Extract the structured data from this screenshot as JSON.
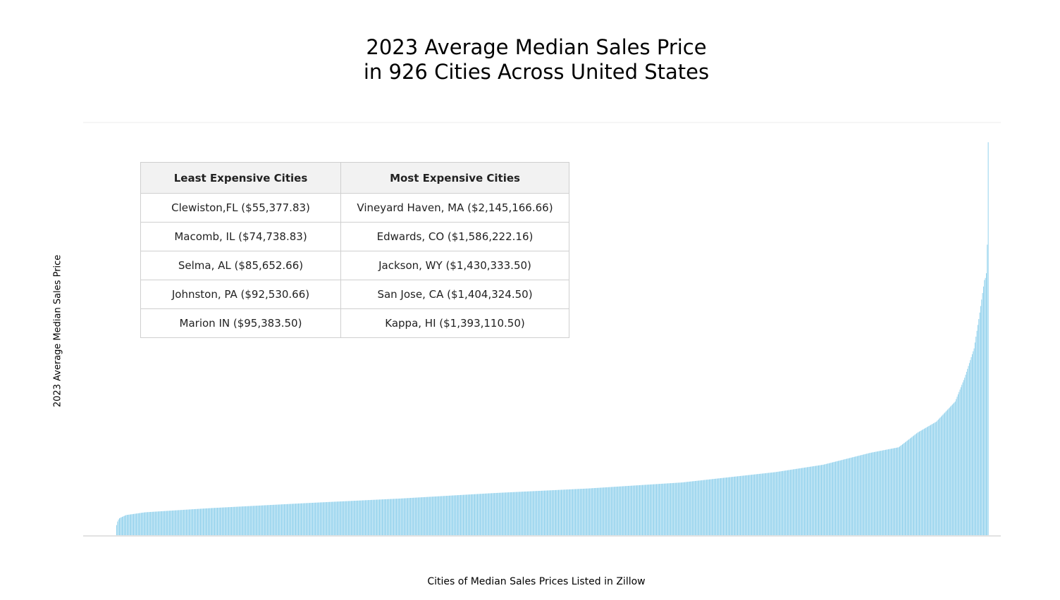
{
  "title": {
    "line1": "2023 Average Median Sales Price",
    "line2": "in 926 Cities Across United States"
  },
  "axes": {
    "ylabel": "2023 Average Median Sales Price",
    "xlabel": "Cities of Median Sales Prices Listed in Zillow"
  },
  "table": {
    "headers": [
      "Least Expensive Cities",
      "Most Expensive Cities"
    ],
    "rows": [
      [
        "Clewiston,FL ($55,377.83)",
        "Vineyard Haven, MA ($2,145,166.66)"
      ],
      [
        "Macomb, IL ($74,738.83)",
        "Edwards, CO ($1,586,222.16)"
      ],
      [
        "Selma, AL ($85,652.66)",
        "Jackson, WY ($1,430,333.50)"
      ],
      [
        "Johnston, PA ($92,530.66)",
        "San Jose, CA ($1,404,324.50)"
      ],
      [
        "Marion IN ($95,383.50)",
        "Kappa, HI ($1,393,110.50)"
      ]
    ]
  },
  "colors": {
    "bar": "#8fd0ec",
    "axis": "#d9d9d9"
  },
  "chart_data": {
    "type": "bar",
    "sorted": "ascending",
    "n_categories": 926,
    "title": "2023 Average Median Sales Price in 926 Cities Across United States",
    "xlabel": "Cities of Median Sales Prices Listed in Zillow",
    "ylabel": "2023 Average Median Sales Price",
    "ylim": [
      0,
      2145166.66
    ],
    "value_profile": [
      [
        0,
        55377.83
      ],
      [
        1,
        74738.83
      ],
      [
        2,
        85652.66
      ],
      [
        3,
        92530.66
      ],
      [
        4,
        95383.5
      ],
      [
        10,
        110000
      ],
      [
        30,
        125000
      ],
      [
        60,
        135000
      ],
      [
        100,
        148000
      ],
      [
        200,
        175000
      ],
      [
        300,
        200000
      ],
      [
        400,
        230000
      ],
      [
        500,
        255000
      ],
      [
        600,
        288000
      ],
      [
        700,
        345000
      ],
      [
        750,
        385000
      ],
      [
        800,
        450000
      ],
      [
        830,
        480000
      ],
      [
        850,
        560000
      ],
      [
        870,
        620000
      ],
      [
        890,
        730000
      ],
      [
        900,
        860000
      ],
      [
        910,
        1020000
      ],
      [
        915,
        1180000
      ],
      [
        921,
        1393110.5
      ],
      [
        922,
        1404324.5
      ],
      [
        923,
        1430333.5
      ],
      [
        924,
        1586222.16
      ],
      [
        925,
        2145166.66
      ]
    ],
    "extremes": {
      "lowest": [
        {
          "city": "Clewiston, FL",
          "value": 55377.83
        },
        {
          "city": "Macomb, IL",
          "value": 74738.83
        },
        {
          "city": "Selma, AL",
          "value": 85652.66
        },
        {
          "city": "Johnston, PA",
          "value": 92530.66
        },
        {
          "city": "Marion, IN",
          "value": 95383.5
        }
      ],
      "highest": [
        {
          "city": "Vineyard Haven, MA",
          "value": 2145166.66
        },
        {
          "city": "Edwards, CO",
          "value": 1586222.16
        },
        {
          "city": "Jackson, WY",
          "value": 1430333.5
        },
        {
          "city": "San Jose, CA",
          "value": 1404324.5
        },
        {
          "city": "Kappa, HI",
          "value": 1393110.5
        }
      ]
    },
    "grid": false,
    "legend": "none"
  }
}
